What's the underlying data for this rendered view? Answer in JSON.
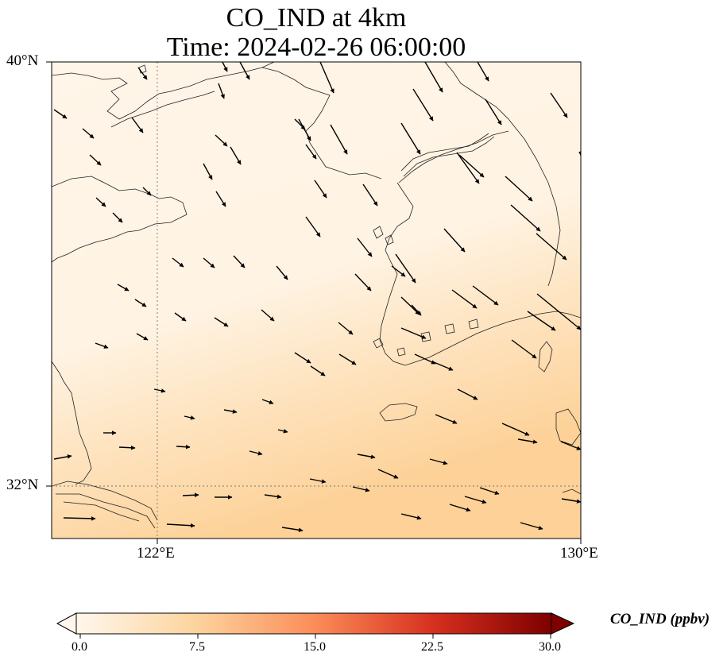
{
  "title": {
    "line1": "CO_IND at 4km",
    "line2": "Time: 2024-02-26 06:00:00"
  },
  "map": {
    "lat_range": [
      31,
      40
    ],
    "lon_range": [
      120,
      130
    ],
    "lat_ticks": [
      "40°N",
      "32°N"
    ],
    "lon_ticks": [
      "122°E",
      "130°E"
    ],
    "gridlines": [
      "122°E",
      "32°N"
    ],
    "field_colors": {
      "low": "#fff5e8",
      "high": "#fdd49e"
    },
    "wind_arrows": "black"
  },
  "colorbar": {
    "label": "CO_IND (ppbv)",
    "ticks": [
      "0.0",
      "7.5",
      "15.0",
      "22.5",
      "30.0"
    ],
    "range": [
      0,
      30
    ],
    "colormap": [
      "#fff7ec",
      "#fdd49e",
      "#fc8d59",
      "#d7301f",
      "#7f0000"
    ],
    "extend": "both"
  }
}
